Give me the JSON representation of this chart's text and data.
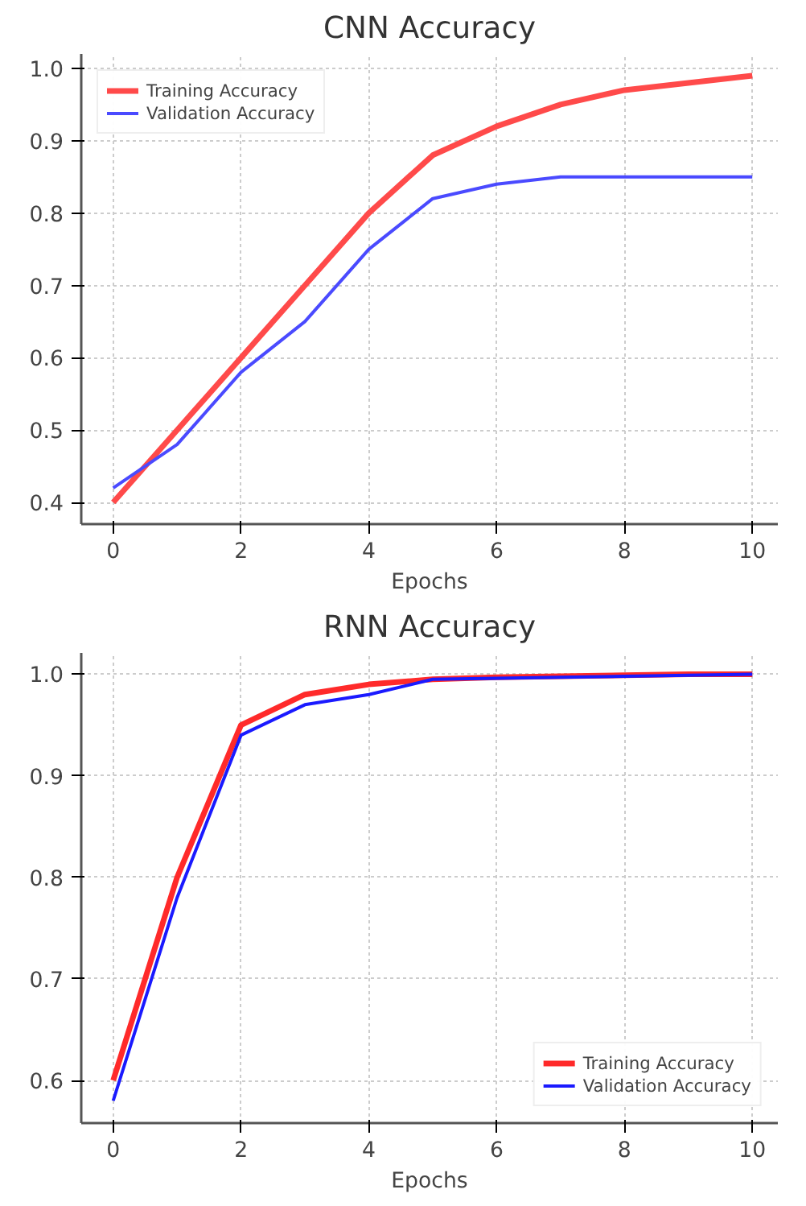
{
  "chart_data": [
    {
      "type": "line",
      "title": "CNN Accuracy",
      "xlabel": "Epochs",
      "x": [
        0,
        1,
        2,
        3,
        4,
        5,
        6,
        7,
        8,
        9,
        10
      ],
      "xlim": [
        -0.5,
        10.4
      ],
      "xticks": [
        0,
        2,
        4,
        6,
        8,
        10
      ],
      "ylim": [
        0.37,
        1.02
      ],
      "yticks": [
        {
          "value": 0.4,
          "label": "0.4"
        },
        {
          "value": 0.5,
          "label": "0.5"
        },
        {
          "value": 0.6,
          "label": "0.6"
        },
        {
          "value": 0.7,
          "label": "0.7"
        },
        {
          "value": 0.8,
          "label": "0.8"
        },
        {
          "value": 0.9,
          "label": "0.9"
        },
        {
          "value": 1.0,
          "label": "1.0"
        }
      ],
      "grid": true,
      "legend": "top left",
      "series": [
        {
          "name": "Training Accuracy",
          "color": "#ff4a4a",
          "values": [
            0.4,
            0.5,
            0.6,
            0.7,
            0.8,
            0.88,
            0.92,
            0.95,
            0.97,
            0.98,
            0.99
          ]
        },
        {
          "name": "Validation Accuracy",
          "color": "#4a4aff",
          "values": [
            0.42,
            0.48,
            0.58,
            0.65,
            0.75,
            0.82,
            0.84,
            0.85,
            0.85,
            0.85,
            0.85
          ]
        }
      ]
    },
    {
      "type": "line",
      "title": "RNN Accuracy",
      "xlabel": "Epochs",
      "x": [
        0,
        1,
        2,
        3,
        4,
        5,
        6,
        7,
        8,
        9,
        10
      ],
      "xlim": [
        -0.5,
        10.4
      ],
      "xticks": [
        0,
        2,
        4,
        6,
        8,
        10
      ],
      "ylim": [
        0.558,
        1.021
      ],
      "yticks": [
        {
          "value": 0.6,
          "label": "0.6"
        },
        {
          "value": 0.7,
          "label": "0.7"
        },
        {
          "value": 0.8,
          "label": "0.8"
        },
        {
          "value": 0.9,
          "label": "0.9"
        },
        {
          "value": 1.0,
          "label": "1.0"
        }
      ],
      "grid": true,
      "legend": "bottom right",
      "series": [
        {
          "name": "Training Accuracy",
          "color": "#ff2a2a",
          "values": [
            0.6,
            0.8,
            0.95,
            0.98,
            0.99,
            0.995,
            0.997,
            0.998,
            0.999,
            1.0,
            1.0
          ]
        },
        {
          "name": "Validation Accuracy",
          "color": "#1a1aff",
          "values": [
            0.58,
            0.78,
            0.94,
            0.97,
            0.98,
            0.995,
            0.996,
            0.997,
            0.998,
            0.999,
            1.0
          ]
        }
      ]
    }
  ]
}
